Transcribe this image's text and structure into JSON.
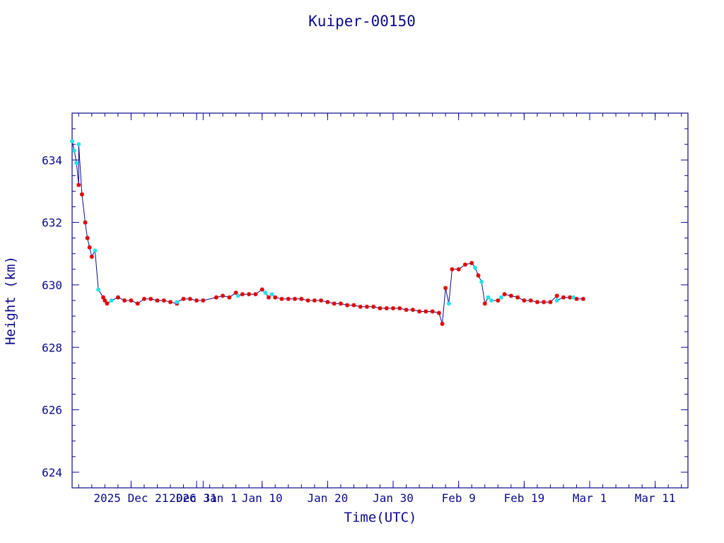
{
  "chart_data": {
    "type": "line",
    "title": "Kuiper-00150",
    "xlabel": "Time(UTC)",
    "ylabel": "Height (km)",
    "ylim": [
      623.5,
      635.5
    ],
    "x_axis": {
      "start": "2025-12-12",
      "end": "2026-03-16",
      "unit": "date"
    },
    "y_ticks": [
      "624",
      "626",
      "628",
      "630",
      "632",
      "634"
    ],
    "x_ticks": [
      {
        "date": "2025-12-21",
        "label": "2025 Dec 21"
      },
      {
        "date": "2025-12-31",
        "label": "Dec 31"
      },
      {
        "date": "2026-01-01",
        "label": "2026 Jan 1"
      },
      {
        "date": "2026-01-10",
        "label": "Jan 10"
      },
      {
        "date": "2026-01-20",
        "label": "Jan 20"
      },
      {
        "date": "2026-01-30",
        "label": "Jan 30"
      },
      {
        "date": "2026-02-09",
        "label": "Feb  9"
      },
      {
        "date": "2026-02-19",
        "label": "Feb 19"
      },
      {
        "date": "2026-03-01",
        "label": "Mar  1"
      },
      {
        "date": "2026-03-11",
        "label": "Mar 11"
      }
    ],
    "grid": false,
    "colors": {
      "axis": "#0a0a8c",
      "line": "#0a0a8c",
      "marker_red": "#e00000",
      "marker_cyan": "#22e0e8"
    },
    "series": [
      {
        "marker": "red-star",
        "points": [
          [
            "2025-12-13",
            633.2
          ],
          [
            "2025-12-13 12:00",
            632.9
          ],
          [
            "2025-12-14",
            632.0
          ],
          [
            "2025-12-14 08:00",
            631.5
          ],
          [
            "2025-12-14 16:00",
            631.2
          ],
          [
            "2025-12-15",
            630.9
          ],
          [
            "2025-12-16 18:00",
            629.6
          ],
          [
            "2025-12-17",
            629.5
          ],
          [
            "2025-12-17 08:00",
            629.4
          ],
          [
            "2025-12-19",
            629.6
          ],
          [
            "2025-12-20",
            629.5
          ],
          [
            "2025-12-21",
            629.5
          ],
          [
            "2025-12-22",
            629.4
          ],
          [
            "2025-12-23",
            629.55
          ],
          [
            "2025-12-24",
            629.55
          ],
          [
            "2025-12-25",
            629.5
          ],
          [
            "2025-12-26",
            629.5
          ],
          [
            "2025-12-27",
            629.45
          ],
          [
            "2025-12-28",
            629.4
          ],
          [
            "2025-12-29",
            629.55
          ],
          [
            "2025-12-30",
            629.55
          ],
          [
            "2025-12-31",
            629.5
          ],
          [
            "2026-01-01",
            629.5
          ],
          [
            "2026-01-03",
            629.6
          ],
          [
            "2026-01-04",
            629.65
          ],
          [
            "2026-01-05",
            629.6
          ],
          [
            "2026-01-06",
            629.75
          ],
          [
            "2026-01-07",
            629.7
          ],
          [
            "2026-01-08",
            629.7
          ],
          [
            "2026-01-09",
            629.7
          ],
          [
            "2026-01-10",
            629.85
          ],
          [
            "2026-01-11",
            629.6
          ],
          [
            "2026-01-12",
            629.6
          ],
          [
            "2026-01-13",
            629.55
          ],
          [
            "2026-01-14",
            629.55
          ],
          [
            "2026-01-15",
            629.55
          ],
          [
            "2026-01-16",
            629.55
          ],
          [
            "2026-01-17",
            629.5
          ],
          [
            "2026-01-18",
            629.5
          ],
          [
            "2026-01-19",
            629.5
          ],
          [
            "2026-01-20",
            629.45
          ],
          [
            "2026-01-21",
            629.4
          ],
          [
            "2026-01-22",
            629.4
          ],
          [
            "2026-01-23",
            629.35
          ],
          [
            "2026-01-24",
            629.35
          ],
          [
            "2026-01-25",
            629.3
          ],
          [
            "2026-01-26",
            629.3
          ],
          [
            "2026-01-27",
            629.3
          ],
          [
            "2026-01-28",
            629.25
          ],
          [
            "2026-01-29",
            629.25
          ],
          [
            "2026-01-30",
            629.25
          ],
          [
            "2026-01-31",
            629.25
          ],
          [
            "2026-02-01",
            629.2
          ],
          [
            "2026-02-02",
            629.2
          ],
          [
            "2026-02-03",
            629.15
          ],
          [
            "2026-02-04",
            629.15
          ],
          [
            "2026-02-05",
            629.15
          ],
          [
            "2026-02-06",
            629.1
          ],
          [
            "2026-02-06 12:00",
            628.75
          ],
          [
            "2026-02-07",
            629.9
          ],
          [
            "2026-02-08",
            630.5
          ],
          [
            "2026-02-09",
            630.5
          ],
          [
            "2026-02-10",
            630.65
          ],
          [
            "2026-02-11",
            630.7
          ],
          [
            "2026-02-12",
            630.3
          ],
          [
            "2026-02-13",
            629.4
          ],
          [
            "2026-02-15",
            629.5
          ],
          [
            "2026-02-16",
            629.7
          ],
          [
            "2026-02-17",
            629.65
          ],
          [
            "2026-02-18",
            629.6
          ],
          [
            "2026-02-19",
            629.5
          ],
          [
            "2026-02-20",
            629.5
          ],
          [
            "2026-02-21",
            629.45
          ],
          [
            "2026-02-22",
            629.45
          ],
          [
            "2026-02-23",
            629.45
          ],
          [
            "2026-02-24",
            629.65
          ],
          [
            "2026-02-25",
            629.6
          ],
          [
            "2026-02-26",
            629.6
          ],
          [
            "2026-02-27",
            629.55
          ],
          [
            "2026-02-28",
            629.55
          ]
        ]
      },
      {
        "marker": "cyan-star",
        "points": [
          [
            "2025-12-12",
            634.6
          ],
          [
            "2025-12-12 08:00",
            634.3
          ],
          [
            "2025-12-12 16:00",
            633.9
          ],
          [
            "2025-12-13",
            634.5
          ],
          [
            "2025-12-15 12:00",
            631.1
          ],
          [
            "2025-12-16",
            629.85
          ],
          [
            "2025-12-18",
            629.5
          ],
          [
            "2025-12-28",
            629.45
          ],
          [
            "2026-01-06 08:00",
            629.65
          ],
          [
            "2026-01-10 12:00",
            629.75
          ],
          [
            "2026-01-11 12:00",
            629.7
          ],
          [
            "2026-02-07 12:00",
            629.4
          ],
          [
            "2026-02-11 12:00",
            630.55
          ],
          [
            "2026-02-12 12:00",
            630.1
          ],
          [
            "2026-02-13 12:00",
            629.6
          ],
          [
            "2026-02-14",
            629.5
          ],
          [
            "2026-02-15 12:00",
            629.6
          ],
          [
            "2026-02-24",
            629.5
          ],
          [
            "2026-02-26 12:00",
            629.6
          ]
        ]
      }
    ]
  }
}
